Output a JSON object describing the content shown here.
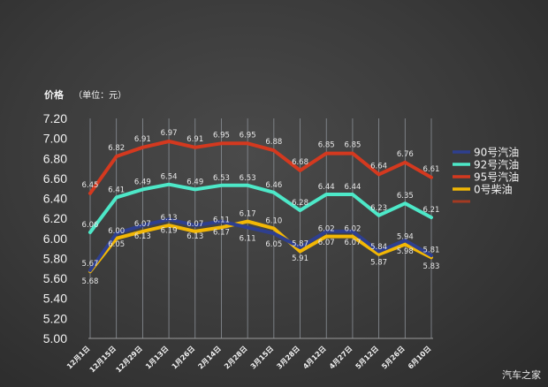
{
  "chart_data": {
    "type": "line",
    "ylabel": "价格",
    "ylabel_unit": "（单位：元）",
    "ylim": [
      5.0,
      7.2
    ],
    "yticks": [
      "7.20",
      "7.00",
      "6.80",
      "6.60",
      "6.40",
      "6.20",
      "6.00",
      "5.80",
      "5.60",
      "5.40",
      "5.20",
      "5.00"
    ],
    "categories": [
      "12月1日",
      "12月15日",
      "12月29日",
      "1月13日",
      "1月26日",
      "2月14日",
      "2月28日",
      "3月15日",
      "3月28日",
      "4月12日",
      "4月27日",
      "5月12日",
      "5月26日",
      "6月10日"
    ],
    "grid": "vertical",
    "legend_position": "right",
    "series": [
      {
        "name": "90号汽油",
        "color": "#2e3f8f",
        "values": [
          5.68,
          6.05,
          6.13,
          6.19,
          6.13,
          6.17,
          6.11,
          6.05,
          5.91,
          6.07,
          6.07,
          5.87,
          5.98,
          5.83
        ],
        "labels": [
          "5.68",
          "6.05",
          "6.13",
          "6.19",
          "6.13",
          "6.17",
          "6.11",
          "6.05",
          "5.91",
          "6.07",
          "6.07",
          "5.87",
          "5.98",
          "5.83"
        ]
      },
      {
        "name": "92号汽油",
        "color": "#4de8c8",
        "values": [
          6.06,
          6.41,
          6.49,
          6.54,
          6.49,
          6.53,
          6.53,
          6.46,
          6.28,
          6.44,
          6.44,
          6.23,
          6.35,
          6.21
        ],
        "labels": [
          "6.06",
          "6.41",
          "6.49",
          "6.54",
          "6.49",
          "6.53",
          "6.53",
          "6.46",
          "6.28",
          "6.44",
          "6.44",
          "6.23",
          "6.35",
          "6.21"
        ]
      },
      {
        "name": "95号汽油",
        "color": "#d4391f",
        "values": [
          6.45,
          6.82,
          6.91,
          6.97,
          6.91,
          6.95,
          6.95,
          6.88,
          6.68,
          6.85,
          6.85,
          6.64,
          6.76,
          6.61
        ],
        "labels": [
          "6.45",
          "6.82",
          "6.91",
          "6.97",
          "6.91",
          "6.95",
          "6.95",
          "6.88",
          "6.68",
          "6.85",
          "6.85",
          "6.64",
          "6.76",
          "6.61"
        ]
      },
      {
        "name": "0号柴油",
        "color": "#f2b705",
        "values": [
          5.67,
          6.0,
          6.07,
          6.13,
          6.07,
          6.11,
          6.17,
          6.1,
          5.87,
          6.02,
          6.02,
          5.84,
          5.94,
          5.81
        ],
        "labels": [
          "5.67",
          "6.00",
          "6.07",
          "6.13",
          "6.07",
          "6.11",
          "6.17",
          "6.10",
          "5.87",
          "6.02",
          "6.02",
          "5.84",
          "5.94",
          "5.81"
        ]
      }
    ],
    "legend_extra_color": "#a33a22"
  },
  "watermark": "汽车之家"
}
